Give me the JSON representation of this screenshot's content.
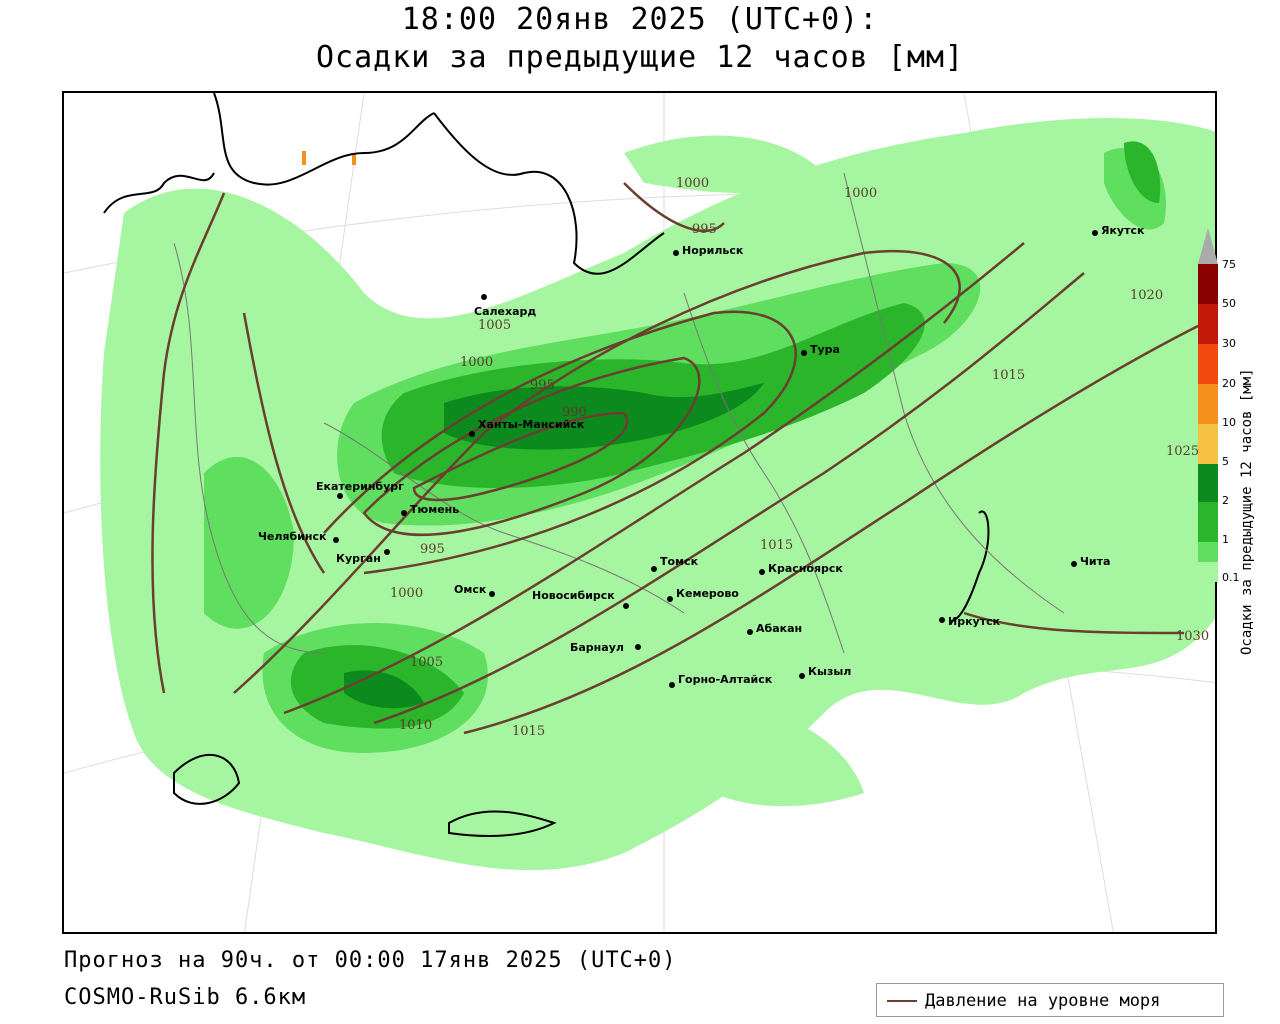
{
  "title": {
    "line1": "18:00 20янв 2025 (UTC+0):",
    "line2": "Осадки за предыдущие 12 часов [мм]"
  },
  "footer": {
    "forecast": "Прогноз на 90ч. от 00:00 17янв 2025 (UTC+0)",
    "model": "COSMO-RuSib 6.6км"
  },
  "legend": {
    "label": "Давление на уровне моря",
    "line_color": "#6b3f2f"
  },
  "colorbar": {
    "title": "Осадки за предыдущие 12 часов [мм]",
    "ticks": [
      "0.1",
      "1",
      "2",
      "5",
      "10",
      "20",
      "30",
      "50",
      "75"
    ],
    "colors": [
      "#a6f5a0",
      "#5fde5f",
      "#2bb52b",
      "#0c8a1e",
      "#f6c243",
      "#f5901d",
      "#f24a0e",
      "#c11a0a",
      "#8b0000",
      "#aaaaaa"
    ]
  },
  "cities": [
    {
      "name": "Якутск"
    },
    {
      "name": "Норильск"
    },
    {
      "name": "Салехард"
    },
    {
      "name": "Тура"
    },
    {
      "name": "Ханты-Мансийск"
    },
    {
      "name": "Екатеринбург"
    },
    {
      "name": "Тюмень"
    },
    {
      "name": "Челябинск"
    },
    {
      "name": "Курган"
    },
    {
      "name": "Омск"
    },
    {
      "name": "Новосибирск"
    },
    {
      "name": "Томск"
    },
    {
      "name": "Кемерово"
    },
    {
      "name": "Красноярск"
    },
    {
      "name": "Барнаул"
    },
    {
      "name": "Абакан"
    },
    {
      "name": "Горно-Алтайск"
    },
    {
      "name": "Кызыл"
    },
    {
      "name": "Иркутск"
    },
    {
      "name": "Чита"
    }
  ],
  "isobar_labels": [
    "1000",
    "1000",
    "995",
    "1005",
    "1000",
    "995",
    "990",
    "995",
    "1000",
    "1005",
    "1010",
    "1015",
    "1015",
    "1015",
    "1020",
    "1025",
    "1030"
  ]
}
